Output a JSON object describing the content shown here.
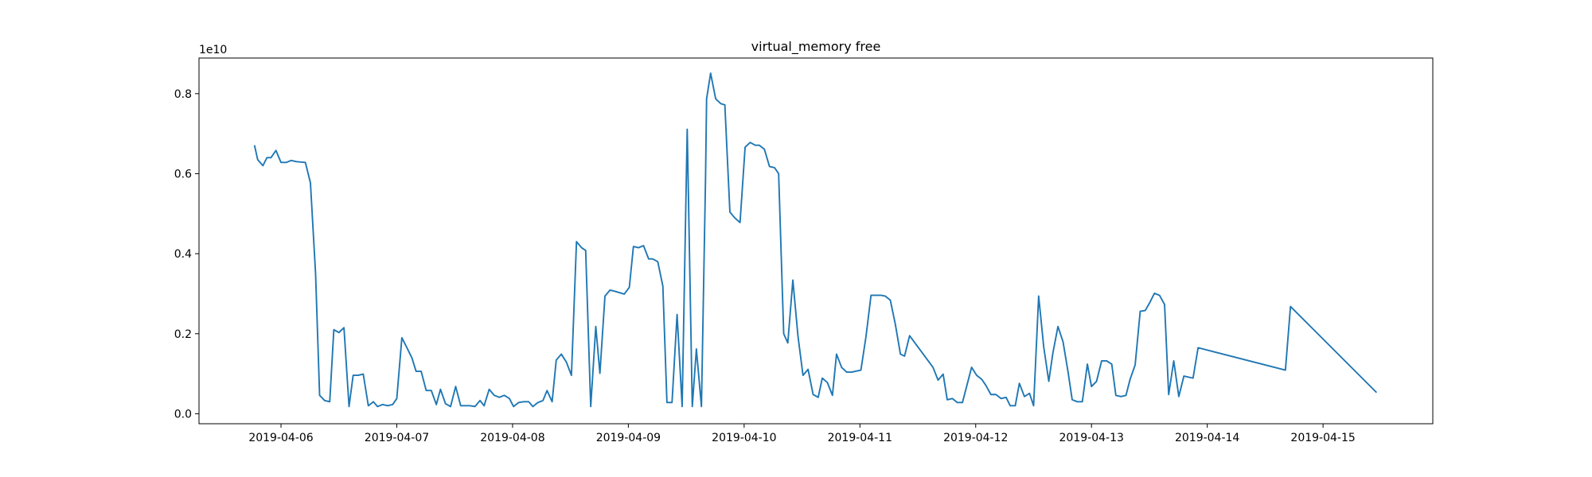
{
  "chart_data": {
    "type": "line",
    "title": "virtual_memory free",
    "y_offset_label": "1e10",
    "color": "#1f77b4",
    "grid": false,
    "xlim": [
      "2019-04-05T07:00",
      "2019-04-15T22:45"
    ],
    "xticks": [
      "2019-04-06",
      "2019-04-07",
      "2019-04-08",
      "2019-04-09",
      "2019-04-10",
      "2019-04-11",
      "2019-04-12",
      "2019-04-13",
      "2019-04-14",
      "2019-04-15"
    ],
    "ylim": [
      -0.025,
      0.889
    ],
    "yticks": [
      {
        "value": 0,
        "label": "0.0"
      },
      0.2,
      0.4,
      0.6,
      0.8
    ],
    "x": [
      "2019-04-05T18:30",
      "2019-04-05T19:10",
      "2019-04-05T20:15",
      "2019-04-05T21:05",
      "2019-04-05T21:55",
      "2019-04-05T22:57",
      "2019-04-06T00:00",
      "2019-04-06T01:03",
      "2019-04-06T02:06",
      "2019-04-06T03:10",
      "2019-04-06T05:03",
      "2019-04-06T06:06",
      "2019-04-06T07:10",
      "2019-04-06T08:00",
      "2019-04-06T09:03",
      "2019-04-06T10:06",
      "2019-04-06T10:57",
      "2019-04-06T12:00",
      "2019-04-06T13:03",
      "2019-04-06T14:06",
      "2019-04-06T14:57",
      "2019-04-06T16:00",
      "2019-04-06T17:03",
      "2019-04-06T18:06",
      "2019-04-06T19:09",
      "2019-04-06T20:00",
      "2019-04-06T21:03",
      "2019-04-06T22:06",
      "2019-04-06T23:09",
      "2019-04-07T00:00",
      "2019-04-07T01:03",
      "2019-04-07T02:06",
      "2019-04-07T03:09",
      "2019-04-07T04:00",
      "2019-04-07T05:03",
      "2019-04-07T06:06",
      "2019-04-07T07:09",
      "2019-04-07T08:12",
      "2019-04-07T09:03",
      "2019-04-07T10:06",
      "2019-04-07T11:09",
      "2019-04-07T12:12",
      "2019-04-07T13:15",
      "2019-04-07T14:18",
      "2019-04-07T15:09",
      "2019-04-07T16:12",
      "2019-04-07T17:15",
      "2019-04-07T18:06",
      "2019-04-07T19:09",
      "2019-04-07T20:12",
      "2019-04-07T21:15",
      "2019-04-07T22:18",
      "2019-04-07T23:21",
      "2019-04-08T00:12",
      "2019-04-08T01:15",
      "2019-04-08T02:18",
      "2019-04-08T03:21",
      "2019-04-08T04:12",
      "2019-04-08T05:15",
      "2019-04-08T06:18",
      "2019-04-08T07:09",
      "2019-04-08T08:12",
      "2019-04-08T09:03",
      "2019-04-08T10:06",
      "2019-04-08T11:09",
      "2019-04-08T12:12",
      "2019-04-08T13:15",
      "2019-04-08T14:18",
      "2019-04-08T15:09",
      "2019-04-08T16:12",
      "2019-04-08T17:15",
      "2019-04-08T18:06",
      "2019-04-08T19:09",
      "2019-04-08T20:12",
      "2019-04-08T21:15",
      "2019-04-08T23:09",
      "2019-04-09T00:12",
      "2019-04-09T01:03",
      "2019-04-09T02:06",
      "2019-04-09T03:09",
      "2019-04-09T04:12",
      "2019-04-09T05:03",
      "2019-04-09T06:06",
      "2019-04-09T07:09",
      "2019-04-09T08:00",
      "2019-04-09T09:03",
      "2019-04-09T10:06",
      "2019-04-09T11:09",
      "2019-04-09T12:12",
      "2019-04-09T13:15",
      "2019-04-09T14:06",
      "2019-04-09T15:09",
      "2019-04-09T16:00",
      "2019-04-09T16:13",
      "2019-04-09T17:03",
      "2019-04-09T18:06",
      "2019-04-09T19:09",
      "2019-04-09T20:00",
      "2019-04-09T21:03",
      "2019-04-09T22:06",
      "2019-04-09T23:09",
      "2019-04-10T00:12",
      "2019-04-10T01:15",
      "2019-04-10T02:18",
      "2019-04-10T03:09",
      "2019-04-10T04:12",
      "2019-04-10T05:15",
      "2019-04-10T06:18",
      "2019-04-10T07:09",
      "2019-04-10T08:12",
      "2019-04-10T09:03",
      "2019-04-10T10:06",
      "2019-04-10T11:09",
      "2019-04-10T12:12",
      "2019-04-10T13:15",
      "2019-04-10T14:18",
      "2019-04-10T15:21",
      "2019-04-10T16:12",
      "2019-04-10T17:15",
      "2019-04-10T18:18",
      "2019-04-10T19:09",
      "2019-04-10T20:12",
      "2019-04-10T21:15",
      "2019-04-10T22:18",
      "2019-04-11T00:12",
      "2019-04-11T01:15",
      "2019-04-11T02:18",
      "2019-04-11T03:21",
      "2019-04-11T04:24",
      "2019-04-11T05:15",
      "2019-04-11T06:18",
      "2019-04-11T07:21",
      "2019-04-11T08:24",
      "2019-04-11T09:15",
      "2019-04-11T10:18",
      "2019-04-11T15:09",
      "2019-04-11T16:12",
      "2019-04-11T17:15",
      "2019-04-11T18:06",
      "2019-04-11T19:09",
      "2019-04-11T20:12",
      "2019-04-11T21:15",
      "2019-04-11T23:09",
      "2019-04-12T00:12",
      "2019-04-12T01:15",
      "2019-04-12T02:06",
      "2019-04-12T03:09",
      "2019-04-12T04:12",
      "2019-04-12T05:15",
      "2019-04-12T06:18",
      "2019-04-12T07:09",
      "2019-04-12T08:12",
      "2019-04-12T09:03",
      "2019-04-12T10:06",
      "2019-04-12T11:09",
      "2019-04-12T12:00",
      "2019-04-12T13:03",
      "2019-04-12T14:06",
      "2019-04-12T15:09",
      "2019-04-12T16:00",
      "2019-04-12T17:03",
      "2019-04-12T18:06",
      "2019-04-12T19:09",
      "2019-04-12T20:00",
      "2019-04-12T21:03",
      "2019-04-12T22:06",
      "2019-04-12T23:09",
      "2019-04-13T00:00",
      "2019-04-13T01:03",
      "2019-04-13T02:06",
      "2019-04-13T03:09",
      "2019-04-13T04:12",
      "2019-04-13T05:03",
      "2019-04-13T06:06",
      "2019-04-13T07:09",
      "2019-04-13T08:00",
      "2019-04-13T09:03",
      "2019-04-13T10:06",
      "2019-04-13T11:09",
      "2019-04-13T12:00",
      "2019-04-13T13:03",
      "2019-04-13T14:06",
      "2019-04-13T15:09",
      "2019-04-13T16:00",
      "2019-04-13T17:03",
      "2019-04-13T18:06",
      "2019-04-13T19:09",
      "2019-04-13T21:03",
      "2019-04-13T22:06",
      "2019-04-14T16:12",
      "2019-04-14T17:15",
      "2019-04-15T11:06"
    ],
    "values": [
      0.671,
      0.635,
      0.62,
      0.64,
      0.64,
      0.658,
      0.628,
      0.628,
      0.633,
      0.63,
      0.628,
      0.577,
      0.35,
      0.046,
      0.033,
      0.03,
      0.21,
      0.203,
      0.215,
      0.018,
      0.096,
      0.096,
      0.099,
      0.02,
      0.03,
      0.018,
      0.023,
      0.02,
      0.023,
      0.038,
      0.19,
      0.165,
      0.139,
      0.106,
      0.106,
      0.058,
      0.058,
      0.023,
      0.061,
      0.025,
      0.018,
      0.068,
      0.02,
      0.02,
      0.02,
      0.018,
      0.033,
      0.02,
      0.061,
      0.046,
      0.041,
      0.046,
      0.038,
      0.018,
      0.028,
      0.03,
      0.03,
      0.018,
      0.028,
      0.033,
      0.058,
      0.03,
      0.134,
      0.149,
      0.129,
      0.096,
      0.43,
      0.415,
      0.408,
      0.018,
      0.218,
      0.101,
      0.294,
      0.309,
      0.306,
      0.299,
      0.316,
      0.418,
      0.415,
      0.42,
      0.387,
      0.387,
      0.38,
      0.319,
      0.028,
      0.028,
      0.248,
      0.018,
      0.711,
      0.018,
      0.162,
      0.018,
      0.59,
      0.787,
      0.851,
      0.787,
      0.775,
      0.772,
      0.504,
      0.489,
      0.478,
      0.666,
      0.678,
      0.671,
      0.671,
      0.661,
      0.618,
      0.615,
      0.6,
      0.2,
      0.177,
      0.334,
      0.195,
      0.096,
      0.111,
      0.048,
      0.041,
      0.089,
      0.078,
      0.046,
      0.149,
      0.116,
      0.104,
      0.104,
      0.109,
      0.192,
      0.296,
      0.296,
      0.296,
      0.294,
      0.284,
      0.223,
      0.149,
      0.144,
      0.195,
      0.116,
      0.084,
      0.099,
      0.035,
      0.038,
      0.028,
      0.028,
      0.116,
      0.096,
      0.086,
      0.071,
      0.048,
      0.048,
      0.038,
      0.041,
      0.02,
      0.02,
      0.076,
      0.043,
      0.051,
      0.02,
      0.294,
      0.167,
      0.081,
      0.152,
      0.218,
      0.18,
      0.104,
      0.035,
      0.03,
      0.03,
      0.124,
      0.068,
      0.081,
      0.132,
      0.132,
      0.124,
      0.046,
      0.043,
      0.046,
      0.086,
      0.122,
      0.256,
      0.258,
      0.276,
      0.301,
      0.296,
      0.273,
      0.048,
      0.132,
      0.043,
      0.094,
      0.089,
      0.165,
      0.109,
      0.268,
      0.053
    ]
  }
}
